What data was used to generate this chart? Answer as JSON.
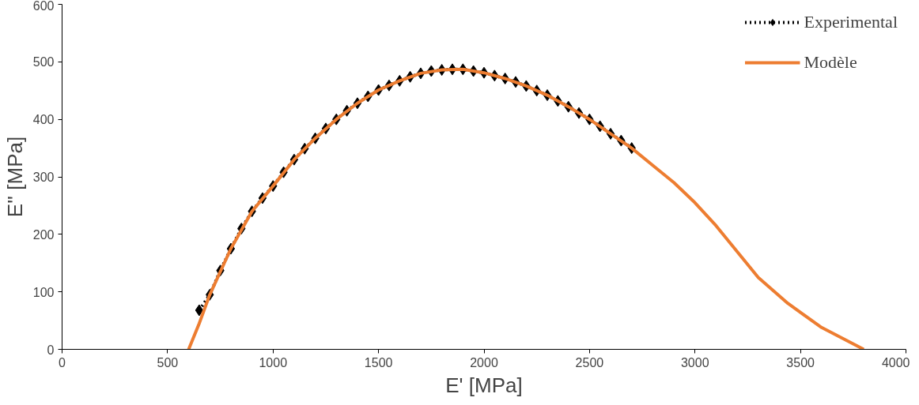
{
  "chart_data": {
    "type": "line",
    "xlabel": "E' [MPa]",
    "ylabel": "E'' [MPa]",
    "xlim": [
      0,
      4000
    ],
    "ylim": [
      0,
      600
    ],
    "xticks": [
      0,
      500,
      1000,
      1500,
      2000,
      2500,
      3000,
      3500,
      4000
    ],
    "yticks": [
      0,
      100,
      200,
      300,
      400,
      500,
      600
    ],
    "grid": false,
    "legend": "top right",
    "series": [
      {
        "name": "Experimental",
        "color": "#000000",
        "marker": "diamond",
        "line_style": "dotted",
        "x": [
          650,
          700,
          750,
          800,
          850,
          900,
          950,
          1000,
          1050,
          1100,
          1150,
          1200,
          1250,
          1300,
          1350,
          1400,
          1450,
          1500,
          1550,
          1600,
          1650,
          1700,
          1750,
          1800,
          1850,
          1900,
          1950,
          2000,
          2050,
          2100,
          2150,
          2200,
          2250,
          2300,
          2350,
          2400,
          2450,
          2500,
          2550,
          2600,
          2650,
          2700
        ],
        "values": [
          68,
          95,
          137,
          175,
          210,
          240,
          263,
          284,
          308,
          330,
          349,
          367,
          384,
          400,
          415,
          428,
          440,
          451,
          459,
          467,
          474,
          480,
          484,
          486,
          487,
          487,
          484,
          481,
          476,
          471,
          465,
          458,
          450,
          442,
          432,
          422,
          411,
          400,
          388,
          375,
          363,
          350
        ]
      },
      {
        "name": "Modèle",
        "color": "#ed7d31",
        "marker": "none",
        "line_style": "solid",
        "x": [
          600,
          650,
          700,
          800,
          900,
          1000,
          1100,
          1200,
          1300,
          1400,
          1500,
          1600,
          1700,
          1800,
          1900,
          2000,
          2100,
          2200,
          2300,
          2400,
          2500,
          2600,
          2700,
          2800,
          2900,
          3000,
          3100,
          3200,
          3300,
          3440,
          3600,
          3800
        ],
        "values": [
          0,
          45,
          95,
          175,
          240,
          284,
          330,
          367,
          400,
          428,
          451,
          467,
          480,
          486,
          487,
          481,
          471,
          458,
          442,
          422,
          400,
          375,
          350,
          320,
          290,
          255,
          215,
          170,
          125,
          80,
          38,
          0
        ]
      }
    ]
  }
}
